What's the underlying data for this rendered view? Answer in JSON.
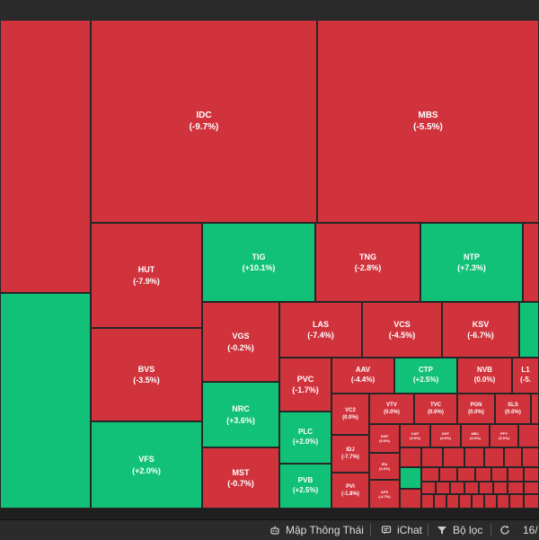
{
  "treemap": {
    "tiles": [
      {
        "code": "",
        "change": "",
        "color": "red"
      },
      {
        "code": "",
        "change": "",
        "color": "green"
      },
      {
        "code": "IDC",
        "change": "(-9.7%)",
        "color": "red"
      },
      {
        "code": "MBS",
        "change": "(-5.5%)",
        "color": "red"
      },
      {
        "code": "HUT",
        "change": "(-7.9%)",
        "color": "red"
      },
      {
        "code": "TIG",
        "change": "(+10.1%)",
        "color": "green"
      },
      {
        "code": "TNG",
        "change": "(-2.8%)",
        "color": "red"
      },
      {
        "code": "NTP",
        "change": "(+7.3%)",
        "color": "green"
      },
      {
        "code": "",
        "change": "",
        "color": "red"
      },
      {
        "code": "BVS",
        "change": "(-3.5%)",
        "color": "red"
      },
      {
        "code": "VGS",
        "change": "(-0.2%)",
        "color": "red"
      },
      {
        "code": "LAS",
        "change": "(-7.4%)",
        "color": "red"
      },
      {
        "code": "VCS",
        "change": "(-4.5%)",
        "color": "red"
      },
      {
        "code": "KSV",
        "change": "(-6.7%)",
        "color": "red"
      },
      {
        "code": "",
        "change": "",
        "color": "green"
      },
      {
        "code": "NRC",
        "change": "(+3.6%)",
        "color": "green"
      },
      {
        "code": "PVC",
        "change": "(-1.7%)",
        "color": "red"
      },
      {
        "code": "AAV",
        "change": "(-4.4%)",
        "color": "red"
      },
      {
        "code": "CTP",
        "change": "(+2.5%)",
        "color": "green"
      },
      {
        "code": "NVB",
        "change": "(0.0%)",
        "color": "red"
      },
      {
        "code": "L1",
        "change": "(-5.",
        "color": "red"
      },
      {
        "code": "VFS",
        "change": "(+2.0%)",
        "color": "green"
      },
      {
        "code": "MST",
        "change": "(-0.7%)",
        "color": "red"
      },
      {
        "code": "PLC",
        "change": "(+2.0%)",
        "color": "green"
      },
      {
        "code": "PVB",
        "change": "(+2.5%)",
        "color": "green"
      },
      {
        "code": "VC2",
        "change": "(0.0%)",
        "color": "red"
      },
      {
        "code": "VTV",
        "change": "(0.0%)",
        "color": "red"
      },
      {
        "code": "TVC",
        "change": "(0.0%)",
        "color": "red"
      },
      {
        "code": "PGN",
        "change": "(0.0%)",
        "color": "red"
      },
      {
        "code": "SLS",
        "change": "(0.0%)",
        "color": "red"
      },
      {
        "code": "IDJ",
        "change": "(-7.7%)",
        "color": "red"
      },
      {
        "code": "PVI",
        "change": "(-1.8%)",
        "color": "red"
      },
      {
        "code": "DXP",
        "change": "(0.0%)",
        "color": "red"
      },
      {
        "code": "IPA",
        "change": "(0.0%)",
        "color": "red"
      },
      {
        "code": "APS",
        "change": "(-4.7%)",
        "color": "red"
      },
      {
        "code": "CAP",
        "change": "(0.0%)",
        "color": "red"
      },
      {
        "code": "DHT",
        "change": "(0.0%)",
        "color": "red"
      },
      {
        "code": "NBC",
        "change": "(0.0%)",
        "color": "red"
      },
      {
        "code": "PPY",
        "change": "(0.0%)",
        "color": "red"
      }
    ]
  },
  "bottom_bar": {
    "map_label": "Mập Thông Thái",
    "chat_label": "iChat",
    "filter_label": "Bộ lọc",
    "date_partial": "16/"
  },
  "icons": [
    "robot-icon",
    "chat-icon",
    "filter-icon",
    "refresh-icon"
  ],
  "colors": {
    "up": "#12c178",
    "down": "#d1333c",
    "bar": "#2b2b2b"
  }
}
